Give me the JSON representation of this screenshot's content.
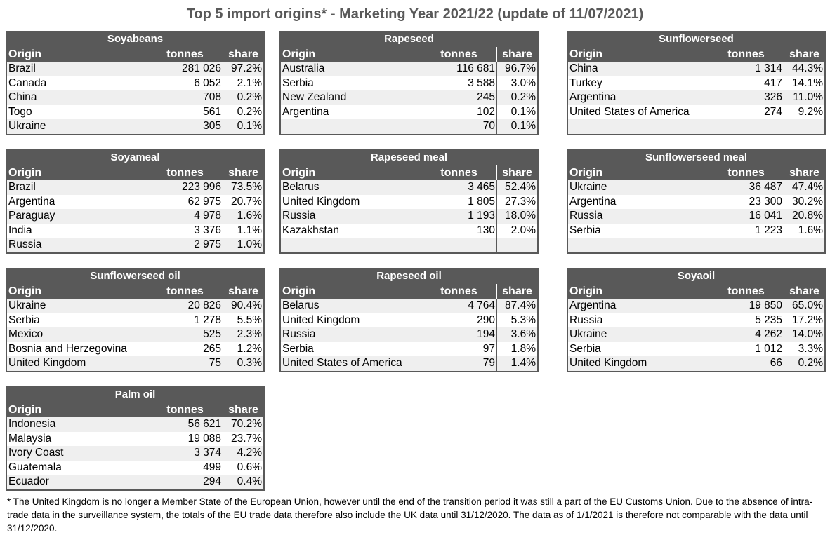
{
  "title": "Top 5 import origins* - Marketing Year 2021/22 (update of 11/07/2021)",
  "columns": {
    "origin": "Origin",
    "tonnes": "tonnes",
    "share": "share"
  },
  "tables": [
    {
      "name": "Soyabeans",
      "rows": [
        {
          "origin": "Brazil",
          "tonnes": "281 026",
          "share": "97.2%"
        },
        {
          "origin": "Canada",
          "tonnes": "6 052",
          "share": "2.1%"
        },
        {
          "origin": "China",
          "tonnes": "708",
          "share": "0.2%"
        },
        {
          "origin": "Togo",
          "tonnes": "561",
          "share": "0.2%"
        },
        {
          "origin": "Ukraine",
          "tonnes": "305",
          "share": "0.1%"
        }
      ]
    },
    {
      "name": "Rapeseed",
      "rows": [
        {
          "origin": "Australia",
          "tonnes": "116 681",
          "share": "96.7%"
        },
        {
          "origin": "Serbia",
          "tonnes": "3 588",
          "share": "3.0%"
        },
        {
          "origin": "New Zealand",
          "tonnes": "245",
          "share": "0.2%"
        },
        {
          "origin": "Argentina",
          "tonnes": "102",
          "share": "0.1%"
        },
        {
          "origin": "",
          "tonnes": "70",
          "share": "0.1%"
        }
      ]
    },
    {
      "name": "Sunflowerseed",
      "rows": [
        {
          "origin": "China",
          "tonnes": "1 314",
          "share": "44.3%"
        },
        {
          "origin": "Turkey",
          "tonnes": "417",
          "share": "14.1%"
        },
        {
          "origin": "Argentina",
          "tonnes": "326",
          "share": "11.0%"
        },
        {
          "origin": "United States of America",
          "tonnes": "274",
          "share": "9.2%"
        },
        {
          "origin": "",
          "tonnes": "",
          "share": ""
        }
      ]
    },
    {
      "name": "Soyameal",
      "rows": [
        {
          "origin": "Brazil",
          "tonnes": "223 996",
          "share": "73.5%"
        },
        {
          "origin": "Argentina",
          "tonnes": "62 975",
          "share": "20.7%"
        },
        {
          "origin": "Paraguay",
          "tonnes": "4 978",
          "share": "1.6%"
        },
        {
          "origin": "India",
          "tonnes": "3 376",
          "share": "1.1%"
        },
        {
          "origin": "Russia",
          "tonnes": "2 975",
          "share": "1.0%"
        }
      ]
    },
    {
      "name": "Rapeseed meal",
      "rows": [
        {
          "origin": "Belarus",
          "tonnes": "3 465",
          "share": "52.4%"
        },
        {
          "origin": "United Kingdom",
          "tonnes": "1 805",
          "share": "27.3%"
        },
        {
          "origin": "Russia",
          "tonnes": "1 193",
          "share": "18.0%"
        },
        {
          "origin": "Kazakhstan",
          "tonnes": "130",
          "share": "2.0%"
        },
        {
          "origin": "",
          "tonnes": "",
          "share": ""
        }
      ]
    },
    {
      "name": "Sunflowerseed meal",
      "rows": [
        {
          "origin": "Ukraine",
          "tonnes": "36 487",
          "share": "47.4%"
        },
        {
          "origin": "Argentina",
          "tonnes": "23 300",
          "share": "30.2%"
        },
        {
          "origin": "Russia",
          "tonnes": "16 041",
          "share": "20.8%"
        },
        {
          "origin": "Serbia",
          "tonnes": "1 223",
          "share": "1.6%"
        },
        {
          "origin": "",
          "tonnes": "",
          "share": ""
        }
      ]
    },
    {
      "name": "Sunflowerseed oil",
      "rows": [
        {
          "origin": "Ukraine",
          "tonnes": "20 826",
          "share": "90.4%"
        },
        {
          "origin": "Serbia",
          "tonnes": "1 278",
          "share": "5.5%"
        },
        {
          "origin": "Mexico",
          "tonnes": "525",
          "share": "2.3%"
        },
        {
          "origin": "Bosnia and Herzegovina",
          "tonnes": "265",
          "share": "1.2%"
        },
        {
          "origin": "United Kingdom",
          "tonnes": "75",
          "share": "0.3%"
        }
      ]
    },
    {
      "name": "Rapeseed oil",
      "rows": [
        {
          "origin": "Belarus",
          "tonnes": "4 764",
          "share": "87.4%"
        },
        {
          "origin": "United Kingdom",
          "tonnes": "290",
          "share": "5.3%"
        },
        {
          "origin": "Russia",
          "tonnes": "194",
          "share": "3.6%"
        },
        {
          "origin": "Serbia",
          "tonnes": "97",
          "share": "1.8%"
        },
        {
          "origin": "United States of America",
          "tonnes": "79",
          "share": "1.4%"
        }
      ]
    },
    {
      "name": "Soyaoil",
      "rows": [
        {
          "origin": "Argentina",
          "tonnes": "19 850",
          "share": "65.0%"
        },
        {
          "origin": "Russia",
          "tonnes": "5 235",
          "share": "17.2%"
        },
        {
          "origin": "Ukraine",
          "tonnes": "4 262",
          "share": "14.0%"
        },
        {
          "origin": "Serbia",
          "tonnes": "1 012",
          "share": "3.3%"
        },
        {
          "origin": "United Kingdom",
          "tonnes": "66",
          "share": "0.2%"
        }
      ]
    },
    {
      "name": "Palm oil",
      "rows": [
        {
          "origin": "Indonesia",
          "tonnes": "56 621",
          "share": "70.2%"
        },
        {
          "origin": "Malaysia",
          "tonnes": "19 088",
          "share": "23.7%"
        },
        {
          "origin": "Ivory Coast",
          "tonnes": "3 374",
          "share": "4.2%"
        },
        {
          "origin": "Guatemala",
          "tonnes": "499",
          "share": "0.6%"
        },
        {
          "origin": "Ecuador",
          "tonnes": "294",
          "share": "0.4%"
        }
      ]
    }
  ],
  "footnote": "* The United Kingdom is no longer a Member State of the European Union, however until the end of the transition period it was still a part of the EU Customs Union. Due to the absence of intra-trade data in the surveillance system, the totals of the EU trade data  therefore also include the UK data until 31/12/2020. The data as of 1/1/2021 is therefore not comparable with the data until 31/12/2020."
}
